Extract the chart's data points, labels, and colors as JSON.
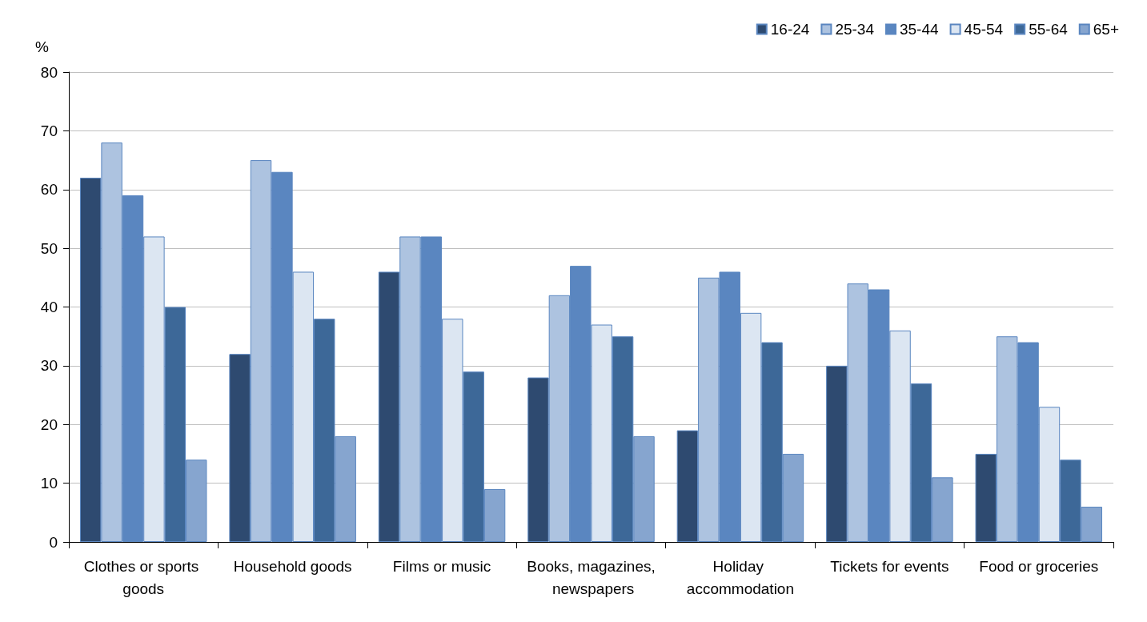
{
  "chart_data": {
    "type": "bar",
    "ylabel": "%",
    "categories": [
      "Clothes or sports goods",
      "Household goods",
      "Films or music",
      "Books, magazines, newspapers",
      "Holiday accommodation",
      "Tickets for events",
      "Food or groceries"
    ],
    "series": [
      {
        "name": "16-24",
        "color": "#2e4a70",
        "values": [
          62,
          32,
          46,
          28,
          19,
          30,
          15
        ]
      },
      {
        "name": "25-34",
        "color": "#adc3e0",
        "values": [
          68,
          65,
          52,
          42,
          45,
          44,
          35
        ]
      },
      {
        "name": "35-44",
        "color": "#5a86c0",
        "values": [
          59,
          63,
          52,
          47,
          46,
          43,
          34
        ]
      },
      {
        "name": "45-54",
        "color": "#dce6f2",
        "values": [
          52,
          46,
          38,
          37,
          39,
          36,
          23
        ]
      },
      {
        "name": "55-64",
        "color": "#3d6898",
        "values": [
          40,
          38,
          29,
          35,
          34,
          27,
          14
        ]
      },
      {
        "name": "65+",
        "color": "#86a5cf",
        "values": [
          14,
          18,
          9,
          18,
          15,
          11,
          6
        ]
      }
    ],
    "ylim": [
      0,
      80
    ],
    "yticks": [
      0,
      10,
      20,
      30,
      40,
      50,
      60,
      70,
      80
    ],
    "grid": "y",
    "legend": "top right"
  }
}
